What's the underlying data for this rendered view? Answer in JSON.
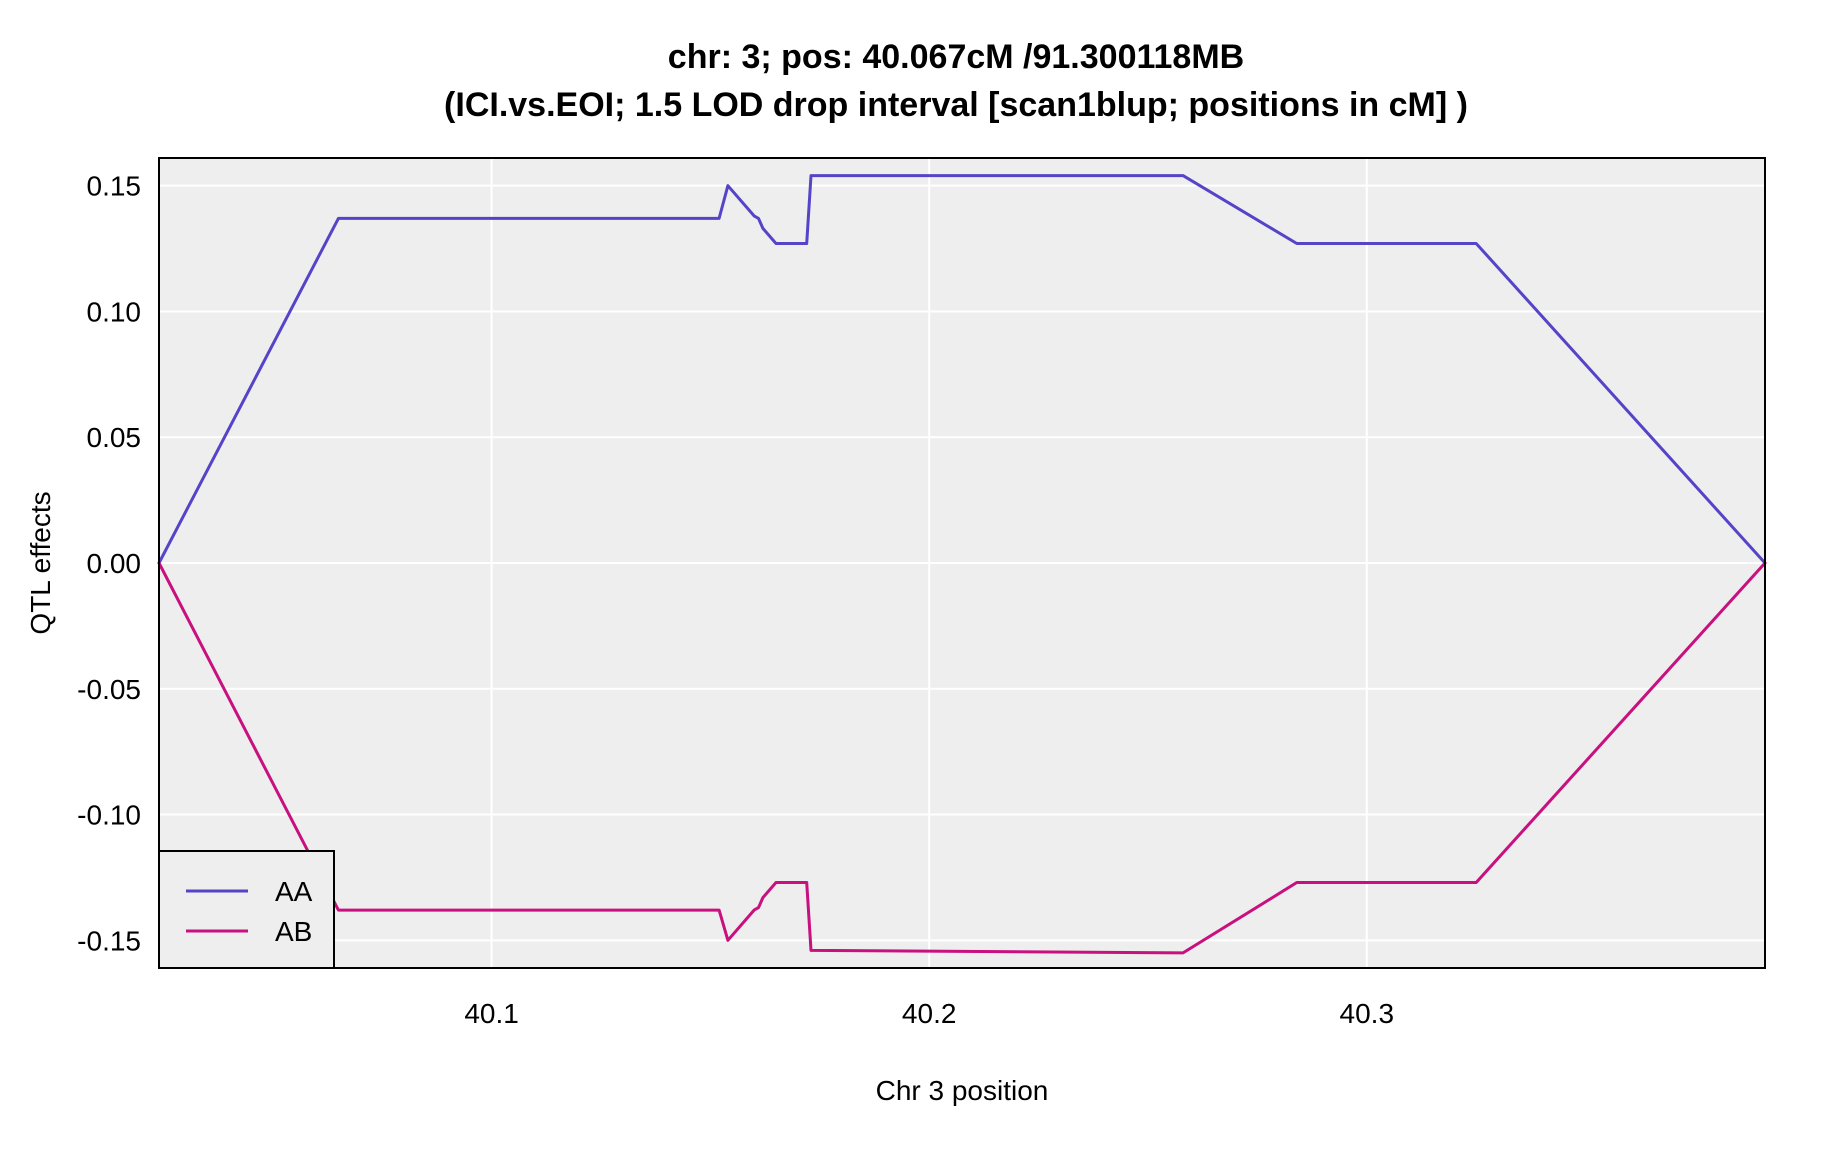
{
  "chart_data": {
    "type": "line",
    "title": "chr: 3; pos: 40.067cM /91.300118MB",
    "subtitle": "(ICI.vs.EOI; 1.5 LOD drop interval [scan1blup; positions in cM] )",
    "xlabel": "Chr 3 position",
    "ylabel": "QTL effects",
    "xlim": [
      40.024,
      40.391
    ],
    "ylim": [
      -0.161,
      0.161
    ],
    "xticks": [
      40.1,
      40.2,
      40.3
    ],
    "xtick_labels": [
      "40.1",
      "40.2",
      "40.3"
    ],
    "yticks": [
      -0.15,
      -0.1,
      -0.05,
      0.0,
      0.05,
      0.1,
      0.15
    ],
    "ytick_labels": [
      "-0.15",
      "-0.10",
      "-0.05",
      "0.00",
      "0.05",
      "0.10",
      "0.15"
    ],
    "grid": true,
    "legend_position": "bottom-left",
    "series": [
      {
        "name": "AA",
        "color": "#5544c8",
        "x": [
          40.024,
          40.065,
          40.152,
          40.154,
          40.16,
          40.161,
          40.162,
          40.165,
          40.172,
          40.173,
          40.258,
          40.284,
          40.325,
          40.391
        ],
        "y": [
          0.0,
          0.137,
          0.137,
          0.15,
          0.138,
          0.137,
          0.133,
          0.127,
          0.127,
          0.154,
          0.154,
          0.127,
          0.127,
          0.0
        ]
      },
      {
        "name": "AB",
        "color": "#c8107f",
        "x": [
          40.024,
          40.065,
          40.152,
          40.154,
          40.16,
          40.161,
          40.162,
          40.165,
          40.172,
          40.173,
          40.258,
          40.284,
          40.325,
          40.391
        ],
        "y": [
          0.0,
          -0.138,
          -0.138,
          -0.15,
          -0.138,
          -0.137,
          -0.133,
          -0.127,
          -0.127,
          -0.154,
          -0.155,
          -0.127,
          -0.127,
          0.0
        ]
      }
    ]
  }
}
